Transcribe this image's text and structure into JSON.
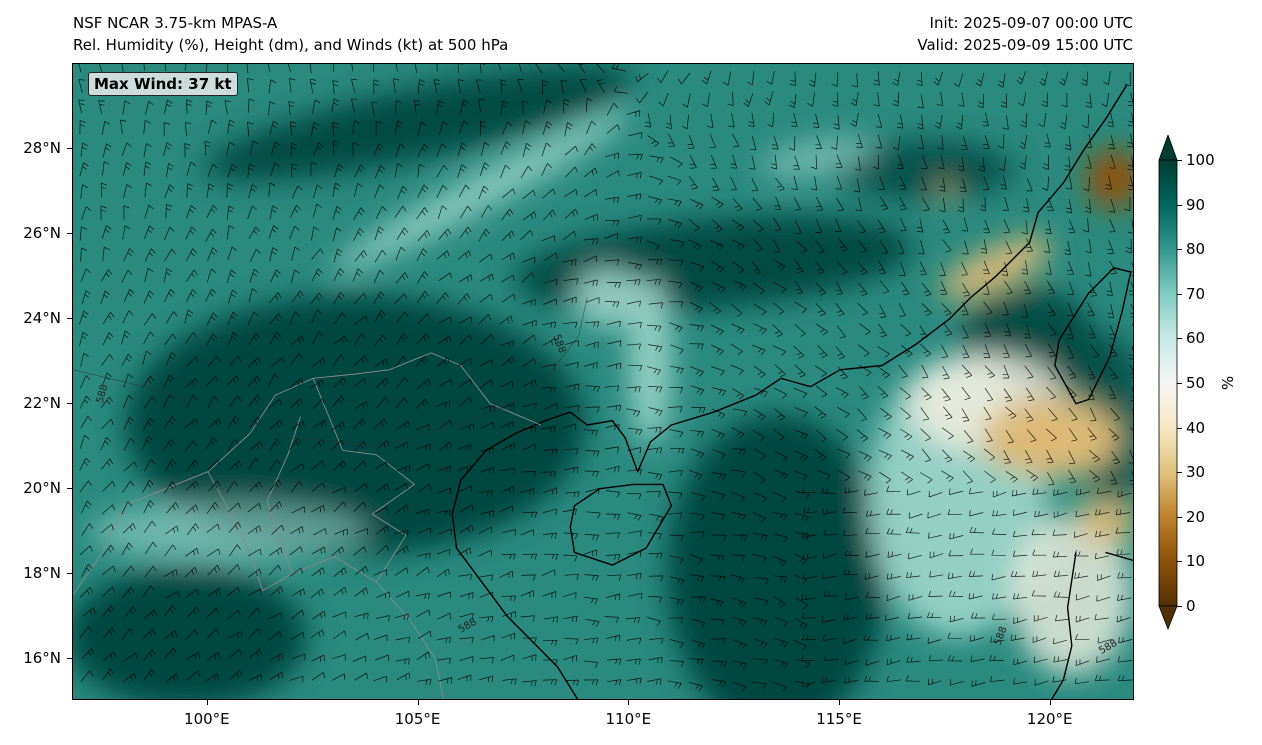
{
  "header": {
    "title_line1": "NSF NCAR 3.75-km MPAS-A",
    "title_line2": "Rel. Humidity (%), Height (dm), and Winds (kt) at 500 hPa",
    "init": "Init: 2025-09-07 00:00 UTC",
    "valid": "Valid: 2025-09-09 15:00 UTC"
  },
  "annotation": {
    "max_wind": "Max Wind: 37 kt"
  },
  "map": {
    "extent": {
      "lon_min": 96.8,
      "lon_max": 122.0,
      "lat_min": 15.0,
      "lat_max": 30.0
    },
    "lat_ticks": [
      {
        "value": 16,
        "label": "16°N"
      },
      {
        "value": 18,
        "label": "18°N"
      },
      {
        "value": 20,
        "label": "20°N"
      },
      {
        "value": 22,
        "label": "22°N"
      },
      {
        "value": 24,
        "label": "24°N"
      },
      {
        "value": 26,
        "label": "26°N"
      },
      {
        "value": 28,
        "label": "28°N"
      }
    ],
    "lon_ticks": [
      {
        "value": 100,
        "label": "100°E"
      },
      {
        "value": 105,
        "label": "105°E"
      },
      {
        "value": 110,
        "label": "110°E"
      },
      {
        "value": 115,
        "label": "115°E"
      },
      {
        "value": 120,
        "label": "120°E"
      }
    ],
    "contour_labels": [
      "588",
      "588",
      "588",
      "588",
      "588"
    ],
    "colors": {
      "humid_dark": "#01463f",
      "humid_mid": "#2a8a7e",
      "humid_light": "#9fd6cb",
      "neutral": "#f3efe2",
      "dry_light": "#dcb977",
      "dry_dark": "#8f520a",
      "coast": "#000000",
      "border": "#8a8a8a"
    }
  },
  "colorbar": {
    "unit": "%",
    "ticks": [
      {
        "value": 0,
        "label": "0"
      },
      {
        "value": 10,
        "label": "10"
      },
      {
        "value": 20,
        "label": "20"
      },
      {
        "value": 30,
        "label": "30"
      },
      {
        "value": 40,
        "label": "40"
      },
      {
        "value": 50,
        "label": "50"
      },
      {
        "value": 60,
        "label": "60"
      },
      {
        "value": 70,
        "label": "70"
      },
      {
        "value": 80,
        "label": "80"
      },
      {
        "value": 90,
        "label": "90"
      },
      {
        "value": 100,
        "label": "100"
      }
    ],
    "extend": "both"
  }
}
